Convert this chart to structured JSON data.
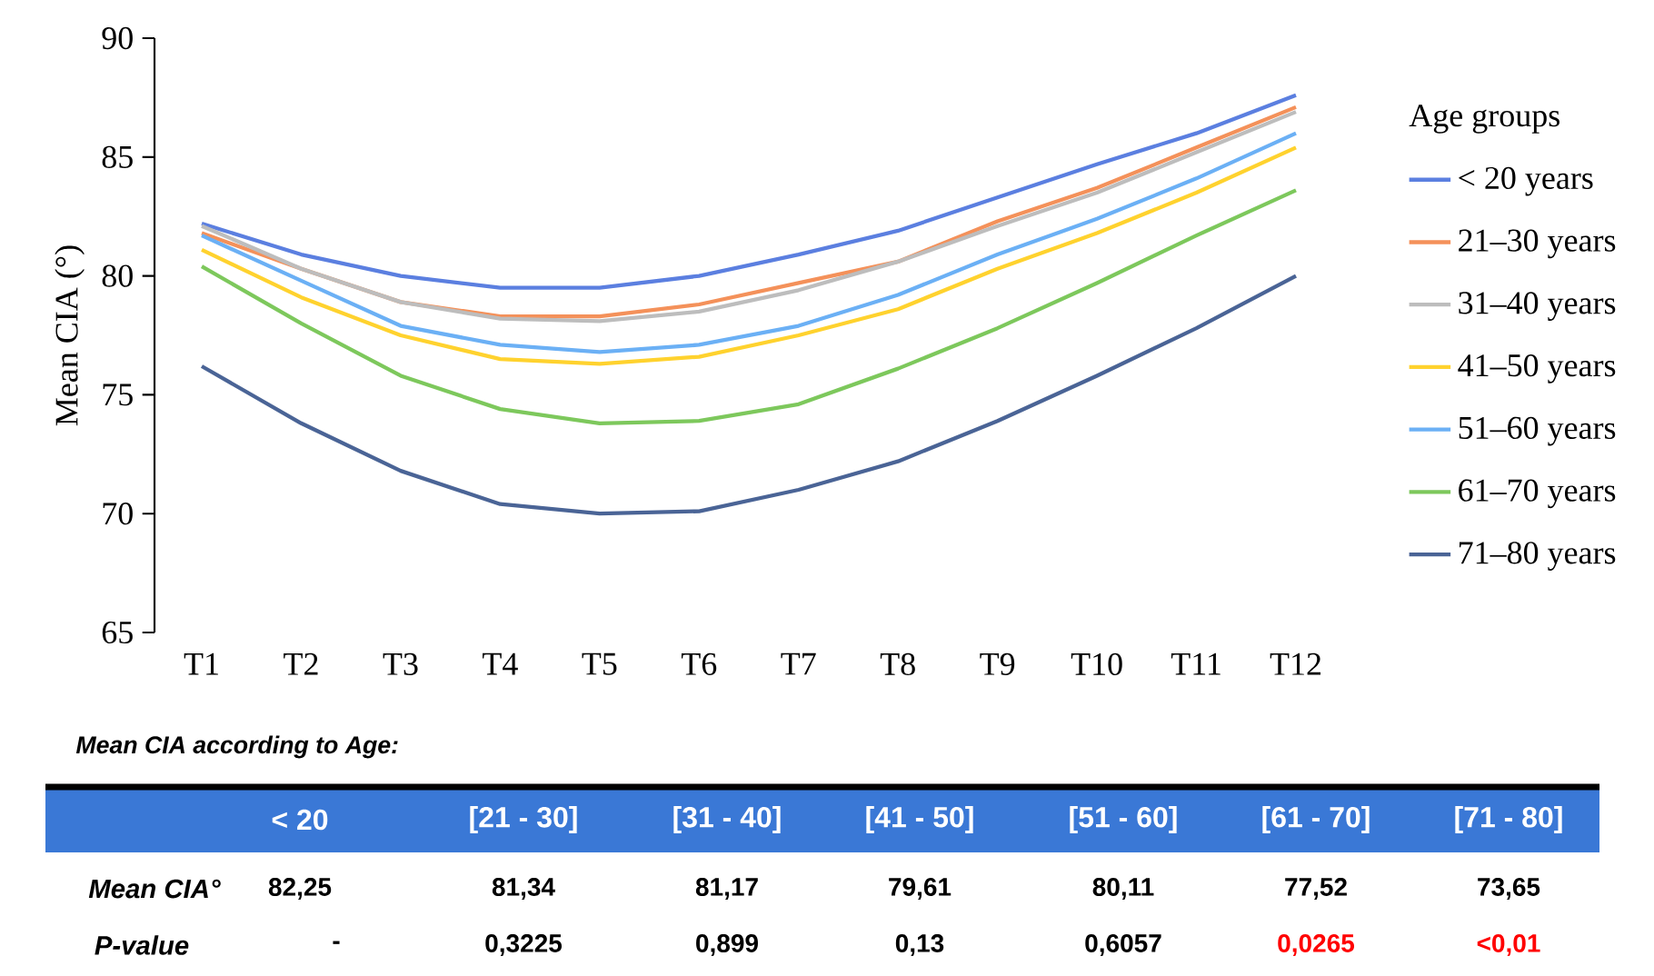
{
  "chart_data": {
    "type": "line",
    "ylabel": "Mean CIA (°)",
    "legend_title": "Age groups",
    "legend": "right",
    "categories": [
      "T1",
      "T2",
      "T3",
      "T4",
      "T5",
      "T6",
      "T7",
      "T8",
      "T9",
      "T10",
      "T11",
      "T12"
    ],
    "ylim": [
      65,
      90
    ],
    "yticks": [
      65,
      70,
      75,
      80,
      85,
      90
    ],
    "grid": false,
    "series": [
      {
        "name": "< 20 years",
        "color": "#5b7fe0",
        "values": [
          82.2,
          80.9,
          80.0,
          79.5,
          79.5,
          80.0,
          80.9,
          81.9,
          83.3,
          84.7,
          86.0,
          87.6
        ]
      },
      {
        "name": "21–30 years",
        "color": "#f4915a",
        "values": [
          81.8,
          80.3,
          78.9,
          78.3,
          78.3,
          78.8,
          79.7,
          80.6,
          82.3,
          83.7,
          85.4,
          87.1
        ]
      },
      {
        "name": "31–40 years",
        "color": "#bdbdbd",
        "values": [
          82.1,
          80.3,
          78.9,
          78.2,
          78.1,
          78.5,
          79.4,
          80.6,
          82.1,
          83.5,
          85.2,
          86.9
        ]
      },
      {
        "name": "41–50 years",
        "color": "#ffd22e",
        "values": [
          81.1,
          79.1,
          77.5,
          76.5,
          76.3,
          76.6,
          77.5,
          78.6,
          80.3,
          81.8,
          83.5,
          85.4
        ]
      },
      {
        "name": "51–60 years",
        "color": "#6bb0f5",
        "values": [
          81.7,
          79.8,
          77.9,
          77.1,
          76.8,
          77.1,
          77.9,
          79.2,
          80.9,
          82.4,
          84.1,
          86.0
        ]
      },
      {
        "name": "61–70 years",
        "color": "#7dc85c",
        "values": [
          80.4,
          78.0,
          75.8,
          74.4,
          73.8,
          73.9,
          74.6,
          76.1,
          77.8,
          79.7,
          81.7,
          83.6
        ]
      },
      {
        "name": "71–80 years",
        "color": "#4a6496",
        "values": [
          76.2,
          73.8,
          71.8,
          70.4,
          70.0,
          70.1,
          71.0,
          72.2,
          73.9,
          75.8,
          77.8,
          80.0
        ]
      }
    ],
    "annotations": [
      "Mean CIA according to Age:",
      "< 20",
      "[21 - 30]",
      "[31 - 40]",
      "[41 - 50]",
      "[51 - 60]",
      "[61 - 70]",
      "[71 - 80]",
      "Mean CIA°",
      "82,25",
      "81,34",
      "81,17",
      "79,61",
      "80,11",
      "77,52",
      "73,65",
      "P-value",
      "-",
      "0,3225",
      "0,899",
      "0,13",
      "0,6057",
      "0,0265",
      "<0,01"
    ]
  }
}
